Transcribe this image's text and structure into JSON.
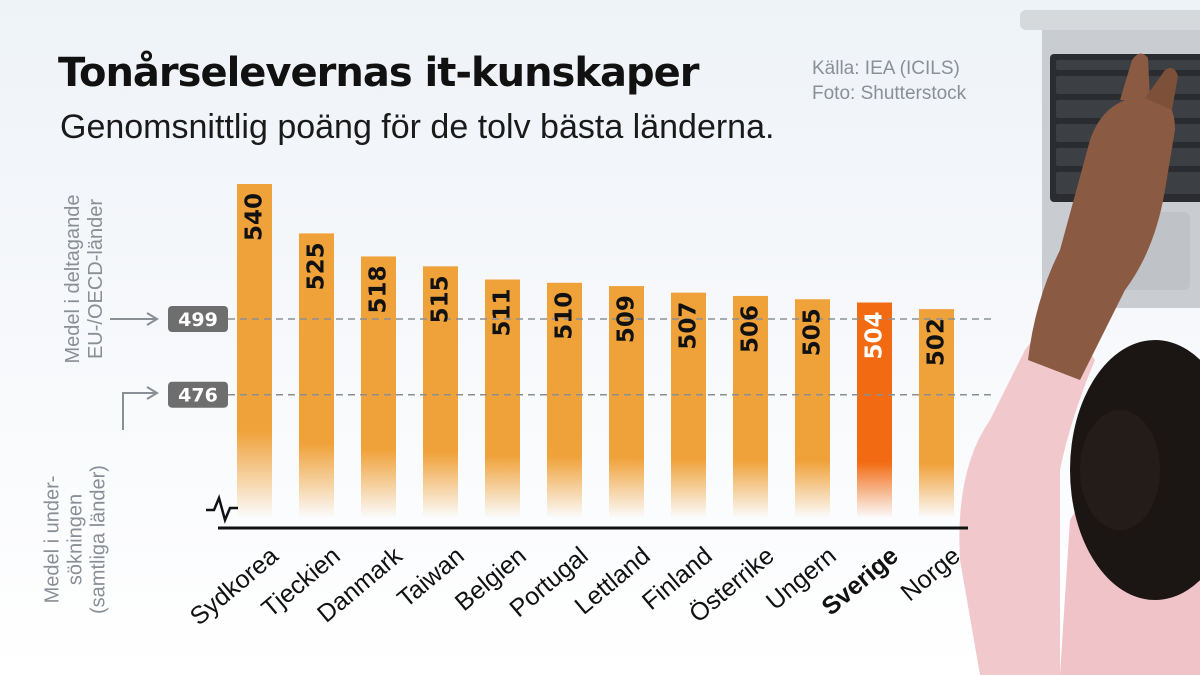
{
  "header": {
    "title": "Tonårselevernas it-kunskaper",
    "subtitle": "Genomsnittlig poäng för de tolv bästa länderna.",
    "source_line1": "Källa: IEA (ICILS)",
    "source_line2": "Foto: Shutterstock"
  },
  "reference_labels": {
    "eu_oecd": [
      "Medel i deltagande",
      "EU-/OECD-länder"
    ],
    "all": [
      "Medel i under-",
      "sökningen",
      "(samtliga länder)"
    ]
  },
  "colors": {
    "bar": "#f0a23a",
    "highlight": "#f26b12",
    "badge": "#6e6e6e",
    "axis": "#111111",
    "label_grey": "#8a8f96"
  },
  "chart_data": {
    "type": "bar",
    "title": "Tonårselevernas it-kunskaper",
    "subtitle": "Genomsnittlig poäng för de tolv bästa länderna.",
    "categories": [
      "Sydkorea",
      "Tjeckien",
      "Danmark",
      "Taiwan",
      "Belgien",
      "Portugal",
      "Lettland",
      "Finland",
      "Österrike",
      "Ungern",
      "Sverige",
      "Norge"
    ],
    "values": [
      540,
      525,
      518,
      515,
      511,
      510,
      509,
      507,
      506,
      505,
      504,
      502
    ],
    "highlight": "Sverige",
    "reference_lines": [
      {
        "value": 499,
        "label": "Medel i deltagande EU-/OECD-länder"
      },
      {
        "value": 476,
        "label": "Medel i undersökningen (samtliga länder)"
      }
    ],
    "axis_break": true,
    "grid": false,
    "xlabel": "",
    "ylabel": ""
  }
}
